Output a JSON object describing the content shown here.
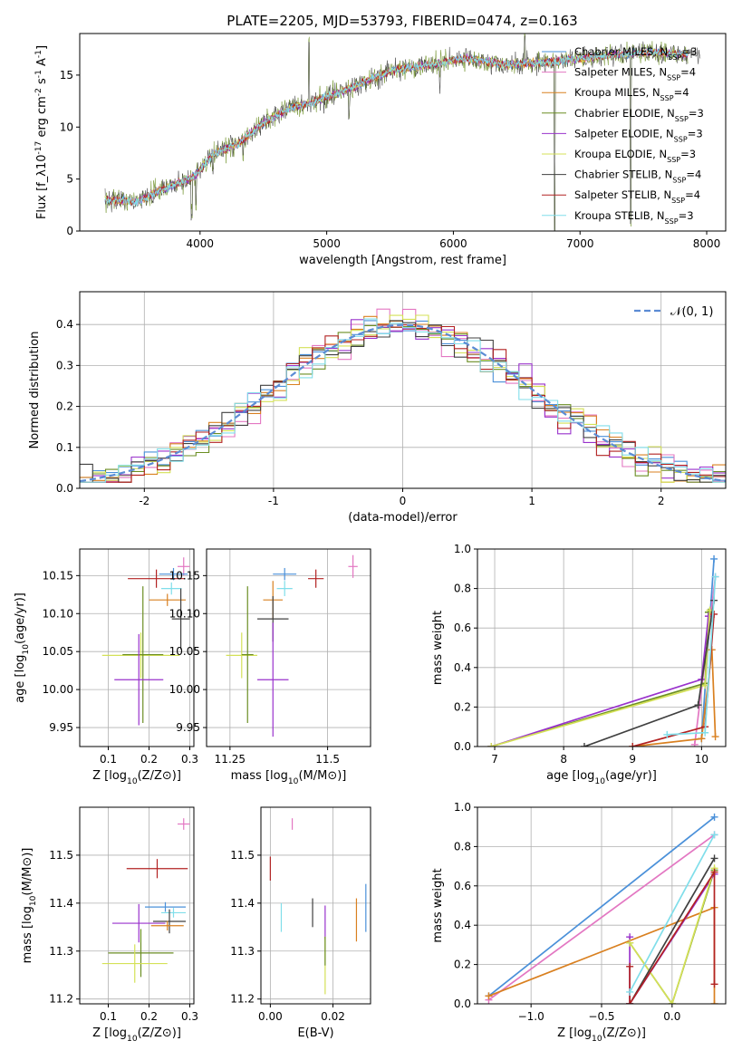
{
  "figure_title": "PLATE=2205, MJD=53793, FIBERID=0474, z=0.163",
  "chart_data": [
    {
      "id": "spectrum",
      "type": "line",
      "title": "PLATE=2205, MJD=53793, FIBERID=0474, z=0.163",
      "xlabel": "wavelength [Angstrom, rest frame]",
      "ylabel": "Flux [f_λ10^-17 erg cm^-2 s^-1 A^-1]",
      "xlim": [
        3050,
        8150
      ],
      "ylim": [
        0,
        19
      ],
      "xticks": [
        4000,
        5000,
        6000,
        7000,
        8000
      ],
      "yticks": [
        0,
        5,
        10,
        15
      ],
      "grid": false,
      "legend_position": "top-right",
      "legend": [
        {
          "name": "Chabrier MILES, N_SSP=3",
          "color": "#4a90d9"
        },
        {
          "name": "Salpeter MILES, N_SSP=4",
          "color": "#e377c2"
        },
        {
          "name": "Kroupa MILES, N_SSP=4",
          "color": "#d98020"
        },
        {
          "name": "Chabrier ELODIE, N_SSP=3",
          "color": "#6b8e23"
        },
        {
          "name": "Salpeter ELODIE, N_SSP=3",
          "color": "#9932cc"
        },
        {
          "name": "Kroupa ELODIE, N_SSP=3",
          "color": "#d4e157"
        },
        {
          "name": "Chabrier STELIB, N_SSP=4",
          "color": "#404040"
        },
        {
          "name": "Salpeter STELIB, N_SSP=4",
          "color": "#b22222"
        },
        {
          "name": "Kroupa STELIB, N_SSP=3",
          "color": "#80deea"
        }
      ],
      "continuum": [
        [
          3250,
          3.0
        ],
        [
          3500,
          2.8
        ],
        [
          3700,
          4.0
        ],
        [
          3950,
          5.2
        ],
        [
          4100,
          7.4
        ],
        [
          4300,
          8.4
        ],
        [
          4500,
          10.4
        ],
        [
          4700,
          11.8
        ],
        [
          4900,
          12.4
        ],
        [
          5200,
          13.8
        ],
        [
          5500,
          15.4
        ],
        [
          5800,
          16.0
        ],
        [
          6100,
          16.6
        ],
        [
          6400,
          16.0
        ],
        [
          6700,
          16.2
        ],
        [
          7000,
          16.6
        ],
        [
          7300,
          17.0
        ],
        [
          7600,
          17.2
        ],
        [
          7800,
          17.0
        ]
      ]
    },
    {
      "id": "residuals",
      "type": "histogram",
      "xlabel": "(data-model)/error",
      "ylabel": "Normed distribution",
      "xlim": [
        -2.5,
        2.5
      ],
      "ylim": [
        0,
        0.48
      ],
      "xticks": [
        -2,
        -1,
        0,
        1,
        2
      ],
      "yticks": [
        0.0,
        0.1,
        0.2,
        0.3,
        0.4
      ],
      "grid": true,
      "legend_position": "top-right",
      "reference_curve": {
        "name": "𝒩(0, 1)",
        "color": "#5b8bd4",
        "style": "dashed"
      },
      "bin_width": 0.1
    },
    {
      "id": "age_vs_Z",
      "type": "errorbar",
      "xlabel": "Z [log10(Z/Z⊙)]",
      "ylabel": "age [log10(age/yr)]",
      "xlim": [
        0.03,
        0.31
      ],
      "ylim": [
        9.925,
        10.185
      ],
      "xticks": [
        0.1,
        0.2,
        0.3
      ],
      "yticks": [
        9.95,
        10.0,
        10.05,
        10.1,
        10.15
      ],
      "grid": true,
      "points": [
        {
          "x": 0.285,
          "y": 10.162,
          "xerr": 0.015,
          "yerr": 0.012,
          "color": "#e377c2"
        },
        {
          "x": 0.26,
          "y": 10.152,
          "xerr": 0.035,
          "yerr": 0.008,
          "color": "#4a90d9"
        },
        {
          "x": 0.218,
          "y": 10.146,
          "xerr": 0.07,
          "yerr": 0.012,
          "color": "#b22222"
        },
        {
          "x": 0.255,
          "y": 10.133,
          "xerr": 0.025,
          "yerr": 0.008,
          "color": "#80deea"
        },
        {
          "x": 0.245,
          "y": 10.118,
          "xerr": 0.045,
          "yerr": 0.008,
          "color": "#d98020"
        },
        {
          "x": 0.278,
          "y": 10.093,
          "xerr": 0.022,
          "yerr": 0.04,
          "color": "#404040"
        },
        {
          "x": 0.18,
          "y": 10.045,
          "xerr": 0.095,
          "yerr": 0.03,
          "color": "#d4e157"
        },
        {
          "x": 0.185,
          "y": 10.046,
          "xerr": 0.05,
          "yerr": 0.09,
          "color": "#6b8e23"
        },
        {
          "x": 0.175,
          "y": 10.013,
          "xerr": 0.06,
          "yerr": 0.06,
          "color": "#9932cc"
        }
      ]
    },
    {
      "id": "age_vs_mass",
      "type": "errorbar",
      "xlabel": "mass [log10(M/M⊙)]",
      "ylabel": "",
      "xlim": [
        11.19,
        11.61
      ],
      "ylim": [
        9.925,
        10.185
      ],
      "xticks": [
        11.25,
        11.5
      ],
      "yticks": [
        9.95,
        10.0,
        10.05,
        10.1,
        10.15
      ],
      "grid": true,
      "points": [
        {
          "x": 11.565,
          "y": 10.162,
          "xerr": 0.012,
          "yerr": 0.015,
          "color": "#e377c2"
        },
        {
          "x": 11.39,
          "y": 10.152,
          "xerr": 0.03,
          "yerr": 0.008,
          "color": "#4a90d9"
        },
        {
          "x": 11.47,
          "y": 10.146,
          "xerr": 0.02,
          "yerr": 0.012,
          "color": "#b22222"
        },
        {
          "x": 11.39,
          "y": 10.133,
          "xerr": 0.02,
          "yerr": 0.01,
          "color": "#80deea"
        },
        {
          "x": 11.36,
          "y": 10.118,
          "xerr": 0.025,
          "yerr": 0.025,
          "color": "#d98020"
        },
        {
          "x": 11.36,
          "y": 10.093,
          "xerr": 0.04,
          "yerr": 0.03,
          "color": "#404040"
        },
        {
          "x": 11.28,
          "y": 10.045,
          "xerr": 0.04,
          "yerr": 0.03,
          "color": "#d4e157"
        },
        {
          "x": 11.295,
          "y": 10.046,
          "xerr": 0.015,
          "yerr": 0.09,
          "color": "#6b8e23"
        },
        {
          "x": 11.36,
          "y": 10.013,
          "xerr": 0.04,
          "yerr": 0.075,
          "color": "#9932cc"
        }
      ]
    },
    {
      "id": "mass_weight_vs_age",
      "type": "line",
      "xlabel": "age [log10(age/yr)]",
      "ylabel": "mass weight",
      "xlim": [
        6.75,
        10.35
      ],
      "ylim": [
        0,
        1.0
      ],
      "xticks": [
        7,
        8,
        9,
        10
      ],
      "yticks": [
        0.0,
        0.2,
        0.4,
        0.6,
        0.8,
        1.0
      ],
      "grid": true,
      "series": [
        {
          "color": "#4a90d9",
          "x": [
            10.0,
            10.18
          ],
          "y": [
            0.04,
            0.95
          ]
        },
        {
          "color": "#e377c2",
          "x": [
            9.9,
            10.2
          ],
          "y": [
            0.01,
            0.86
          ]
        },
        {
          "color": "#d98020",
          "x": [
            9.0,
            10.0,
            10.15,
            10.2
          ],
          "y": [
            0.0,
            0.04,
            0.49,
            0.05
          ]
        },
        {
          "color": "#6b8e23",
          "x": [
            6.95,
            10.05,
            10.1
          ],
          "y": [
            0.0,
            0.32,
            0.68
          ]
        },
        {
          "color": "#9932cc",
          "x": [
            6.95,
            10.0,
            10.1
          ],
          "y": [
            0.0,
            0.34,
            0.66
          ]
        },
        {
          "color": "#d4e157",
          "x": [
            6.95,
            10.05,
            10.12
          ],
          "y": [
            0.0,
            0.31,
            0.69
          ]
        },
        {
          "color": "#404040",
          "x": [
            8.3,
            9.95,
            10.18
          ],
          "y": [
            0.0,
            0.21,
            0.74
          ]
        },
        {
          "color": "#b22222",
          "x": [
            9.0,
            10.05,
            10.18
          ],
          "y": [
            0.0,
            0.1,
            0.67
          ]
        },
        {
          "color": "#80deea",
          "x": [
            9.5,
            10.05,
            10.2
          ],
          "y": [
            0.06,
            0.07,
            0.86
          ]
        }
      ]
    },
    {
      "id": "mass_vs_Z",
      "type": "errorbar",
      "xlabel": "Z [log10(Z/Z⊙)]",
      "ylabel": "mass [log10(M/M⊙)]",
      "xlim": [
        0.03,
        0.31
      ],
      "ylim": [
        11.19,
        11.6
      ],
      "xticks": [
        0.1,
        0.2,
        0.3
      ],
      "yticks": [
        11.2,
        11.3,
        11.4,
        11.5
      ],
      "grid": true,
      "points": [
        {
          "x": 0.285,
          "y": 11.565,
          "xerr": 0.015,
          "yerr": 0.012,
          "color": "#e377c2"
        },
        {
          "x": 0.22,
          "y": 11.472,
          "xerr": 0.075,
          "yerr": 0.02,
          "color": "#b22222"
        },
        {
          "x": 0.24,
          "y": 11.392,
          "xerr": 0.05,
          "yerr": 0.01,
          "color": "#4a90d9"
        },
        {
          "x": 0.26,
          "y": 11.38,
          "xerr": 0.03,
          "yerr": 0.01,
          "color": "#80deea"
        },
        {
          "x": 0.25,
          "y": 11.362,
          "xerr": 0.04,
          "yerr": 0.025,
          "color": "#404040"
        },
        {
          "x": 0.245,
          "y": 11.353,
          "xerr": 0.04,
          "yerr": 0.01,
          "color": "#d98020"
        },
        {
          "x": 0.175,
          "y": 11.358,
          "xerr": 0.065,
          "yerr": 0.04,
          "color": "#9932cc"
        },
        {
          "x": 0.18,
          "y": 11.296,
          "xerr": 0.08,
          "yerr": 0.05,
          "color": "#6b8e23"
        },
        {
          "x": 0.165,
          "y": 11.274,
          "xerr": 0.08,
          "yerr": 0.04,
          "color": "#d4e157"
        }
      ]
    },
    {
      "id": "mass_vs_ebv",
      "type": "errorbar",
      "xlabel": "E(B-V)",
      "ylabel": "",
      "xlim": [
        -0.003,
        0.032
      ],
      "ylim": [
        11.19,
        11.6
      ],
      "xticks": [
        0.0,
        0.02
      ],
      "yticks": [
        11.2,
        11.3,
        11.4,
        11.5
      ],
      "grid": true,
      "points": [
        {
          "x": 0.0,
          "y": 11.472,
          "xerr": 0,
          "yerr": 0.025,
          "color": "#b22222"
        },
        {
          "x": 0.007,
          "y": 11.565,
          "xerr": 0,
          "yerr": 0.012,
          "color": "#e377c2"
        },
        {
          "x": 0.0035,
          "y": 11.37,
          "xerr": 0,
          "yerr": 0.03,
          "color": "#80deea"
        },
        {
          "x": 0.0135,
          "y": 11.38,
          "xerr": 0,
          "yerr": 0.03,
          "color": "#404040"
        },
        {
          "x": 0.0175,
          "y": 11.36,
          "xerr": 0,
          "yerr": 0.035,
          "color": "#9932cc"
        },
        {
          "x": 0.0175,
          "y": 11.27,
          "xerr": 0,
          "yerr": 0.06,
          "color": "#d4e157"
        },
        {
          "x": 0.0175,
          "y": 11.3,
          "xerr": 0,
          "yerr": 0.03,
          "color": "#6b8e23"
        },
        {
          "x": 0.0275,
          "y": 11.365,
          "xerr": 0,
          "yerr": 0.045,
          "color": "#d98020"
        },
        {
          "x": 0.0305,
          "y": 11.39,
          "xerr": 0,
          "yerr": 0.05,
          "color": "#4a90d9"
        }
      ]
    },
    {
      "id": "mass_weight_vs_Z",
      "type": "line",
      "xlabel": "Z [log10(Z/Z⊙)]",
      "ylabel": "mass weight",
      "xlim": [
        -1.38,
        0.38
      ],
      "ylim": [
        0,
        1.0
      ],
      "xticks": [
        -1.0,
        -0.5,
        0.0
      ],
      "yticks": [
        0.0,
        0.2,
        0.4,
        0.6,
        0.8,
        1.0
      ],
      "grid": true,
      "series": [
        {
          "color": "#4a90d9",
          "x": [
            -1.3,
            0.3
          ],
          "y": [
            0.04,
            0.95
          ]
        },
        {
          "color": "#e377c2",
          "x": [
            -1.3,
            0.3
          ],
          "y": [
            0.02,
            0.86
          ]
        },
        {
          "color": "#d98020",
          "x": [
            -1.3,
            0.3,
            0.3
          ],
          "y": [
            0.04,
            0.49,
            0.0
          ]
        },
        {
          "color": "#6b8e23",
          "x": [
            -0.3,
            0.0,
            0.3
          ],
          "y": [
            0.31,
            0.0,
            0.68
          ]
        },
        {
          "color": "#9932cc",
          "x": [
            -0.3,
            -0.3,
            0.3
          ],
          "y": [
            0.34,
            0.0,
            0.66
          ]
        },
        {
          "color": "#d4e157",
          "x": [
            -0.3,
            0.0,
            0.3
          ],
          "y": [
            0.31,
            0.0,
            0.69
          ]
        },
        {
          "color": "#404040",
          "x": [
            -0.3,
            0.3
          ],
          "y": [
            0.0,
            0.74
          ]
        },
        {
          "color": "#b22222",
          "x": [
            -0.3,
            -0.3,
            0.3,
            0.3
          ],
          "y": [
            0.19,
            0.0,
            0.67,
            0.1
          ]
        },
        {
          "color": "#80deea",
          "x": [
            -0.3,
            0.3
          ],
          "y": [
            0.06,
            0.86
          ]
        }
      ]
    }
  ]
}
